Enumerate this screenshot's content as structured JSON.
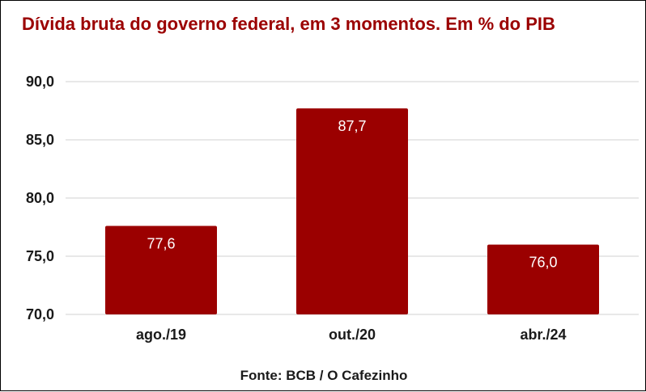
{
  "chart_data": {
    "type": "bar",
    "title": "Dívida bruta do governo federal, em 3 momentos. Em % do PIB",
    "categories": [
      "ago./19",
      "out./20",
      "abr./24"
    ],
    "values": [
      77.6,
      87.7,
      76.0
    ],
    "data_labels": [
      "77,6",
      "87,7",
      "76,0"
    ],
    "ylim": [
      70,
      90
    ],
    "yticks": [
      70,
      75,
      80,
      85,
      90
    ],
    "ytick_labels": [
      "70,0",
      "75,0",
      "80,0",
      "85,0",
      "90,0"
    ],
    "grid": true,
    "bar_color": "#9b0000",
    "xlabel": "",
    "ylabel": ""
  },
  "source": "Fonte: BCB / O Cafezinho"
}
